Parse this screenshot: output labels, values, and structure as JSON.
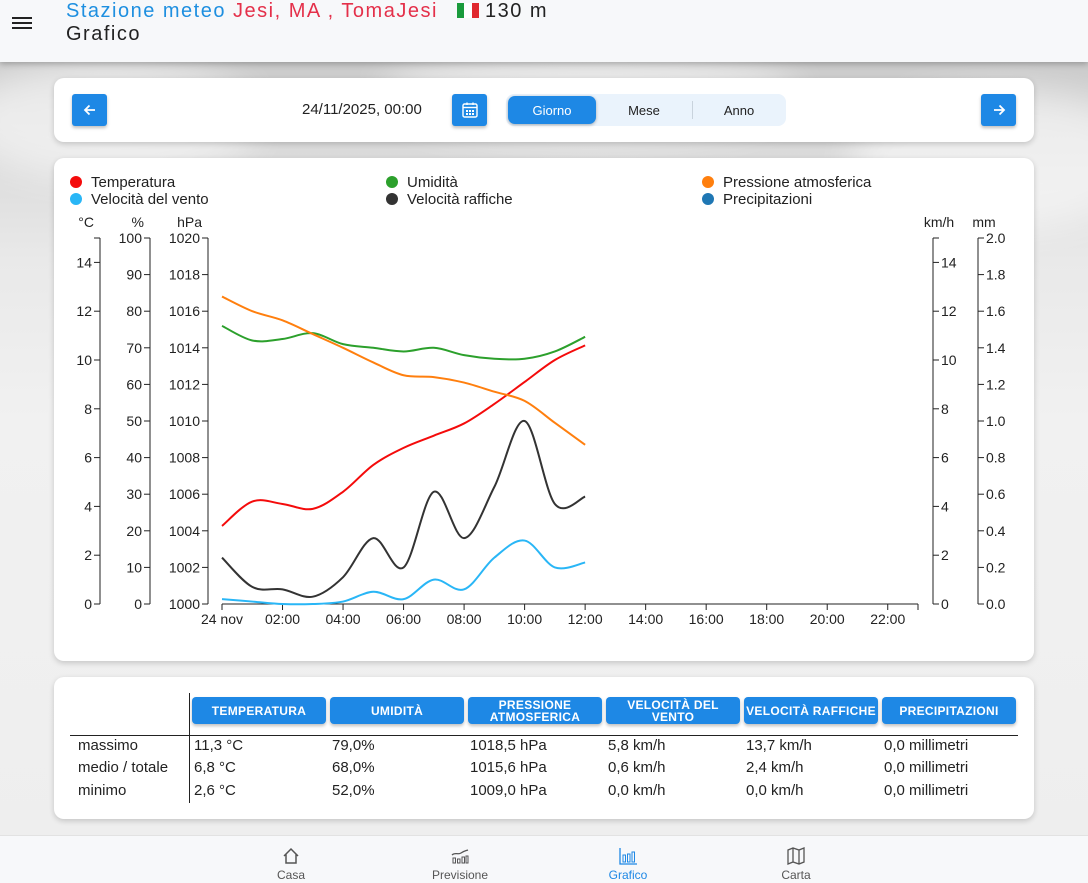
{
  "header": {
    "station_prefix": "Stazione meteo",
    "station_name": "Jesi, MA , TomaJesi",
    "altitude": "130 m",
    "page": "Grafico",
    "flag_colors": [
      "#1a9b3c",
      "#ffffff",
      "#e0282f"
    ]
  },
  "nav": {
    "date": "24/11/2025, 00:00",
    "prev_icon": "arrow-left-icon",
    "next_icon": "arrow-right-icon",
    "calendar_icon": "calendar-icon",
    "periods": [
      {
        "label": "Giorno",
        "active": true
      },
      {
        "label": "Mese",
        "active": false
      },
      {
        "label": "Anno",
        "active": false
      }
    ]
  },
  "chart_data": {
    "type": "line",
    "title": "",
    "legend_placement": "top",
    "legend": [
      {
        "name": "Temperatura",
        "color": "#f40b0b"
      },
      {
        "name": "Umidità",
        "color": "#2ca02c"
      },
      {
        "name": "Pressione atmosferica",
        "color": "#ff7f0e"
      },
      {
        "name": "Velocità del vento",
        "color": "#29b6f6"
      },
      {
        "name": "Velocità raffiche",
        "color": "#333333"
      },
      {
        "name": "Precipitazioni",
        "color": "#1f77b4"
      }
    ],
    "x_tick_labels": [
      "24 nov",
      "02:00",
      "04:00",
      "06:00",
      "08:00",
      "10:00",
      "12:00",
      "14:00",
      "16:00",
      "18:00",
      "20:00",
      "22:00"
    ],
    "xlim_hours": [
      0,
      23
    ],
    "x_hours": [
      0,
      1,
      2,
      3,
      4,
      5,
      6,
      7,
      8,
      9,
      10,
      11,
      12
    ],
    "axes": {
      "temp": {
        "label": "°C",
        "side": "left",
        "range": [
          0,
          15
        ],
        "ticks": [
          0,
          2,
          4,
          6,
          8,
          10,
          12,
          14
        ]
      },
      "hum": {
        "label": "%",
        "side": "left",
        "range": [
          0,
          100
        ],
        "ticks": [
          0,
          10,
          20,
          30,
          40,
          50,
          60,
          70,
          80,
          90,
          100
        ]
      },
      "press": {
        "label": "hPa",
        "side": "left",
        "range": [
          1000,
          1020
        ],
        "ticks": [
          1000,
          1002,
          1004,
          1006,
          1008,
          1010,
          1012,
          1014,
          1016,
          1018,
          1020
        ]
      },
      "wind": {
        "label": "km/h",
        "side": "right",
        "range": [
          0,
          15
        ],
        "ticks": [
          0,
          2,
          4,
          6,
          8,
          10,
          12,
          14
        ]
      },
      "rain": {
        "label": "mm",
        "side": "right",
        "range": [
          0,
          2.0
        ],
        "ticks": [
          "0.0",
          "0.2",
          "0.4",
          "0.6",
          "0.8",
          "1.0",
          "1.2",
          "1.4",
          "1.6",
          "1.8",
          "2.0"
        ]
      }
    },
    "series": [
      {
        "name": "Temperatura",
        "axis": "temp",
        "color": "#f40b0b",
        "values": [
          3.2,
          4.2,
          4.1,
          3.9,
          4.6,
          5.7,
          6.4,
          6.9,
          7.4,
          8.2,
          9.1,
          10.0,
          10.6
        ]
      },
      {
        "name": "Umidità",
        "axis": "hum",
        "color": "#2ca02c",
        "values": [
          76,
          72,
          72.4,
          74,
          71,
          70,
          69,
          70,
          68,
          67,
          67,
          69,
          73
        ]
      },
      {
        "name": "Pressione atmosferica",
        "axis": "press",
        "color": "#ff7f0e",
        "values": [
          1016.8,
          1016.0,
          1015.5,
          1014.75,
          1014.0,
          1013.2,
          1012.5,
          1012.4,
          1012.1,
          1011.6,
          1011.1,
          1009.9,
          1008.7
        ]
      },
      {
        "name": "Velocità del vento",
        "axis": "wind",
        "color": "#29b6f6",
        "values": [
          0.2,
          0.1,
          0.0,
          0.0,
          0.1,
          0.5,
          0.2,
          1.0,
          0.6,
          1.9,
          2.6,
          1.5,
          1.7
        ]
      },
      {
        "name": "Velocità raffiche",
        "axis": "wind",
        "color": "#333333",
        "values": [
          1.9,
          0.7,
          0.6,
          0.3,
          1.1,
          2.7,
          1.5,
          4.6,
          2.7,
          4.8,
          7.5,
          4.1,
          4.4
        ]
      },
      {
        "name": "Precipitazioni",
        "axis": "rain",
        "color": "#1f77b4",
        "values": []
      }
    ]
  },
  "summary": {
    "columns": [
      "TEMPERATURA",
      "UMIDITÀ",
      "PRESSIONE ATMOSFERICA",
      "VELOCITÀ DEL VENTO",
      "VELOCITÀ RAFFICHE",
      "PRECIPITAZIONI"
    ],
    "rows": [
      {
        "label": "massimo",
        "values": [
          "11,3 °C",
          "79,0%",
          "1018,5 hPa",
          "5,8 km/h",
          "13,7 km/h",
          "0,0 millimetri"
        ]
      },
      {
        "label": "medio / totale",
        "values": [
          "6,8 °C",
          "68,0%",
          "1015,6 hPa",
          "0,6 km/h",
          "2,4 km/h",
          "0,0 millimetri"
        ]
      },
      {
        "label": "minimo",
        "values": [
          "2,6 °C",
          "52,0%",
          "1009,0 hPa",
          "0,0 km/h",
          "0,0 km/h",
          "0,0 millimetri"
        ]
      }
    ]
  },
  "bottom_nav": [
    {
      "label": "Casa",
      "icon": "home-icon",
      "active": false
    },
    {
      "label": "Previsione",
      "icon": "forecast-chart-icon",
      "active": false
    },
    {
      "label": "Grafico",
      "icon": "bar-chart-icon",
      "active": true
    },
    {
      "label": "Carta",
      "icon": "map-icon",
      "active": false
    }
  ]
}
